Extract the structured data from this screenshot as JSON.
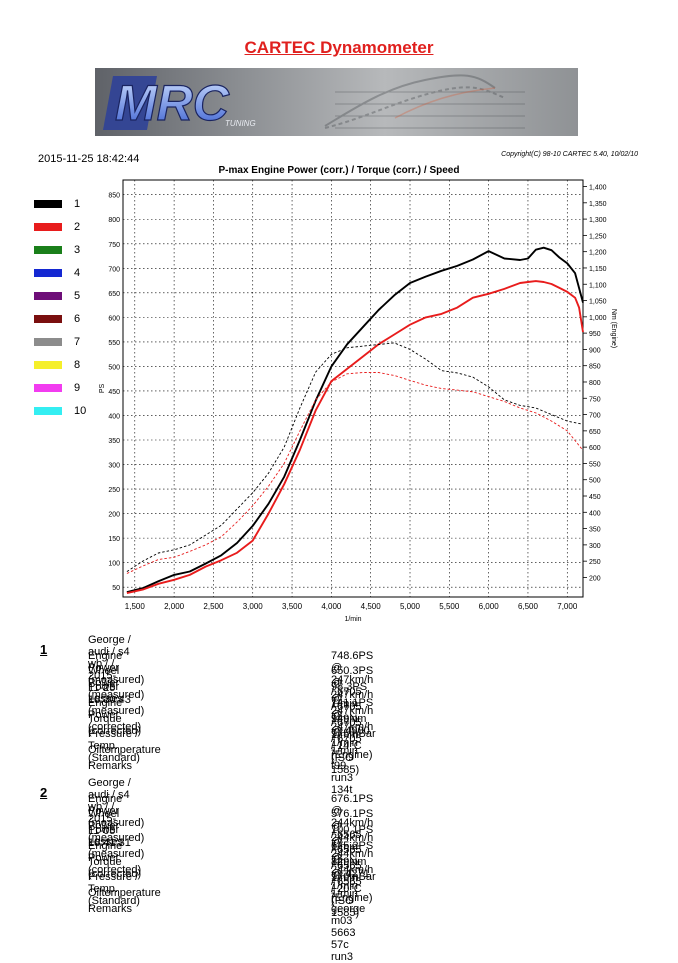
{
  "page": {
    "title": "CARTEC Dynamometer",
    "logo_text": "MRC",
    "logo_subtext": "TUNING",
    "date": "2015-11-25 18:42:44",
    "copyright": "Copyright(C) 98-10 CARTEC 5.40, 10/02/10"
  },
  "legend": [
    {
      "label": "1",
      "color": "#000000"
    },
    {
      "label": "2",
      "color": "#e81c1c"
    },
    {
      "label": "3",
      "color": "#1a7f1a"
    },
    {
      "label": "4",
      "color": "#1428d2"
    },
    {
      "label": "5",
      "color": "#6e0e78"
    },
    {
      "label": "6",
      "color": "#7a0f0f"
    },
    {
      "label": "7",
      "color": "#8c8c8c"
    },
    {
      "label": "8",
      "color": "#f5ef2a"
    },
    {
      "label": "9",
      "color": "#f23cf0"
    },
    {
      "label": "10",
      "color": "#34eef2"
    }
  ],
  "chart_data": {
    "type": "line",
    "title": "P-max Engine Power (corr.) / Torque (corr.) / Speed",
    "xlabel": "1/min",
    "ylabel_left": "PS",
    "ylabel_right": "Nm (Engine)",
    "xlim": [
      1350,
      7200
    ],
    "ylim_left": [
      30,
      880
    ],
    "ylim_right": [
      140,
      1420
    ],
    "x_ticks": [
      "1,500",
      "2,000",
      "2,500",
      "3,000",
      "3,500",
      "4,000",
      "4,500",
      "5,000",
      "5,500",
      "6,000",
      "6,500",
      "7,000"
    ],
    "y_ticks_left": [
      "50",
      "100",
      "150",
      "200",
      "250",
      "300",
      "350",
      "400",
      "450",
      "500",
      "550",
      "600",
      "650",
      "700",
      "750",
      "800",
      "850"
    ],
    "y_ticks_right": [
      "200",
      "250",
      "300",
      "350",
      "400",
      "450",
      "500",
      "550",
      "600",
      "650",
      "700",
      "750",
      "800",
      "850",
      "900",
      "950",
      "1,000",
      "1,050",
      "1,100",
      "1,150",
      "1,200",
      "1,250",
      "1,300",
      "1,350",
      "1,400"
    ],
    "grid": true,
    "series": [
      {
        "name": "1",
        "kind": "power",
        "axis": "left",
        "color": "#000000",
        "x": [
          1400,
          1600,
          1800,
          2000,
          2200,
          2400,
          2600,
          2800,
          3000,
          3200,
          3400,
          3600,
          3800,
          4000,
          4200,
          4400,
          4600,
          4800,
          5000,
          5200,
          5400,
          5600,
          5800,
          6000,
          6200,
          6400,
          6500,
          6600,
          6700,
          6800,
          6900,
          7000,
          7100,
          7200
        ],
        "y": [
          40,
          48,
          62,
          75,
          82,
          98,
          115,
          140,
          175,
          220,
          275,
          350,
          430,
          500,
          545,
          580,
          615,
          645,
          670,
          683,
          695,
          705,
          718,
          735,
          720,
          717,
          720,
          738,
          742,
          737,
          722,
          710,
          690,
          630
        ]
      },
      {
        "name": "2",
        "kind": "power",
        "axis": "left",
        "color": "#e81c1c",
        "x": [
          1400,
          1600,
          1800,
          2000,
          2200,
          2400,
          2600,
          2800,
          3000,
          3200,
          3400,
          3600,
          3800,
          4000,
          4200,
          4400,
          4600,
          4800,
          5000,
          5200,
          5400,
          5600,
          5800,
          6000,
          6200,
          6400,
          6500,
          6600,
          6700,
          6800,
          6900,
          7000,
          7100,
          7150,
          7200
        ],
        "y": [
          38,
          45,
          57,
          65,
          75,
          92,
          105,
          120,
          145,
          200,
          260,
          330,
          410,
          470,
          495,
          520,
          545,
          565,
          585,
          600,
          607,
          620,
          640,
          648,
          658,
          670,
          672,
          674,
          672,
          668,
          660,
          652,
          640,
          620,
          570
        ]
      },
      {
        "name": "1",
        "kind": "torque",
        "axis": "right",
        "color": "#000000",
        "dashed": true,
        "x": [
          1400,
          1600,
          1800,
          2000,
          2200,
          2400,
          2600,
          2800,
          3000,
          3200,
          3400,
          3600,
          3800,
          4000,
          4200,
          4400,
          4600,
          4800,
          5000,
          5200,
          5400,
          5600,
          5800,
          6000,
          6200,
          6400,
          6600,
          6800,
          7000,
          7200
        ],
        "y": [
          218,
          250,
          275,
          285,
          300,
          330,
          360,
          410,
          460,
          520,
          600,
          720,
          830,
          885,
          905,
          910,
          915,
          920,
          900,
          870,
          835,
          828,
          815,
          785,
          745,
          728,
          720,
          700,
          680,
          670
        ]
      },
      {
        "name": "2",
        "kind": "torque",
        "axis": "right",
        "color": "#e81c1c",
        "dashed": true,
        "x": [
          1400,
          1600,
          1800,
          2000,
          2200,
          2400,
          2600,
          2800,
          3000,
          3200,
          3400,
          3600,
          3800,
          4000,
          4200,
          4400,
          4600,
          4800,
          5000,
          5200,
          5400,
          5600,
          5800,
          6000,
          6200,
          6400,
          6600,
          6800,
          7000,
          7100,
          7200
        ],
        "y": [
          212,
          235,
          255,
          262,
          280,
          300,
          325,
          370,
          420,
          480,
          550,
          650,
          745,
          800,
          825,
          829,
          829,
          820,
          805,
          790,
          780,
          775,
          770,
          755,
          740,
          720,
          705,
          680,
          650,
          620,
          590
        ]
      }
    ]
  },
  "runs": [
    {
      "number": "1",
      "header": "George / audi / s4 wb /  / 2015-11-25 18:30:43",
      "rows": [
        {
          "label": "Engine Power (measured)",
          "value": "748.6PS @ 247km/h / 6705 1/min"
        },
        {
          "label": "Wheel Power (measured)",
          "value": "650.3PS @ 247km/h / 6705 1/min"
        },
        {
          "label": "Power Losses (measured)",
          "value": "98.3PS @ 247km/h / 6705 1/min"
        },
        {
          "label": "Engine Power (corrected)",
          "value": "741.1PS @ 247km/h / 6705 1/min"
        },
        {
          "label": "Torque (corrected)",
          "value": "949Nm @ 4900 1/min (Engine)"
        },
        {
          "label": "Pressure / Temp. (Standard)",
          "value": "975mBar / 14°C   (ISO 1585)"
        },
        {
          "label": "Oiltemperature",
          "value": "--"
        },
        {
          "label": "Remarks",
          "value": "t99 run3 134t"
        }
      ]
    },
    {
      "number": "2",
      "header": "George / audi / s4 wb /  / 2015-11-05 18:41:31",
      "rows": [
        {
          "label": "Engine Power (measured)",
          "value": "676.1PS @ 244km/h / 6565 1/min"
        },
        {
          "label": "Wheel Power (measured)",
          "value": "576.1PS @ 244km/h / 6565 1/min"
        },
        {
          "label": "Power Losses (measured)",
          "value": "100.1PS @ 244km/h / 6565 1/min"
        },
        {
          "label": "Engine Power (corrected)",
          "value": "675.2PS @ 244km/h / 6565 1/min"
        },
        {
          "label": "Torque (corrected)",
          "value": "829Nm @ 4271 1/min (Engine)"
        },
        {
          "label": "Pressure / Temp. (Standard)",
          "value": "970mBar / 20°C   (ISO 1585)"
        },
        {
          "label": "Oiltemperature",
          "value": "--"
        },
        {
          "label": "Remarks",
          "value": "george m03 5663 57c run3"
        }
      ]
    }
  ]
}
